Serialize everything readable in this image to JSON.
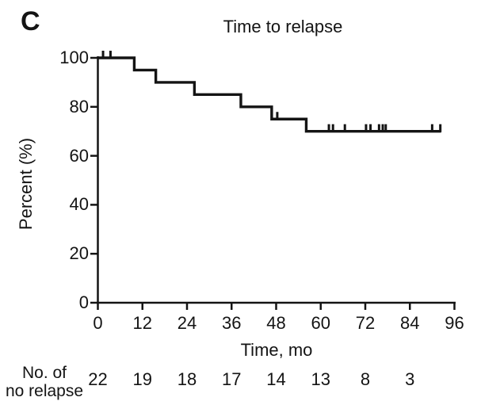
{
  "page": {
    "background": "#ffffff",
    "ink": "#141414"
  },
  "chart_data": {
    "type": "line",
    "subtype": "kaplan-meier-step",
    "panel_label": "C",
    "title": "Time to relapse",
    "xlabel": "Time, mo",
    "ylabel": "Percent (%)",
    "xlim": [
      0,
      96
    ],
    "ylim": [
      0,
      100
    ],
    "x_ticks": [
      0,
      12,
      24,
      36,
      48,
      60,
      72,
      84,
      96
    ],
    "y_ticks": [
      0,
      20,
      40,
      60,
      80,
      100
    ],
    "grid": false,
    "legend": "none",
    "series": [
      {
        "name": "no relapse",
        "color": "#141414",
        "steps": [
          {
            "time": 0,
            "percent": 100
          },
          {
            "time": 9.8,
            "percent": 95
          },
          {
            "time": 15.6,
            "percent": 90
          },
          {
            "time": 26,
            "percent": 85
          },
          {
            "time": 38.5,
            "percent": 80
          },
          {
            "time": 46.8,
            "percent": 75
          },
          {
            "time": 56.1,
            "percent": 70
          }
        ],
        "end_time": 92.4,
        "censor_times": [
          1.4,
          3.4,
          48.3,
          62.2,
          63.3,
          66.5,
          72.2,
          73.4,
          75.7,
          76.7,
          77.5,
          90,
          92.2
        ]
      }
    ],
    "risk_table": {
      "label_lines": [
        "No. of",
        "no relapse"
      ],
      "times": [
        0,
        12,
        24,
        36,
        48,
        60,
        72,
        84
      ],
      "values": [
        22,
        19,
        18,
        17,
        14,
        13,
        8,
        3
      ]
    }
  }
}
